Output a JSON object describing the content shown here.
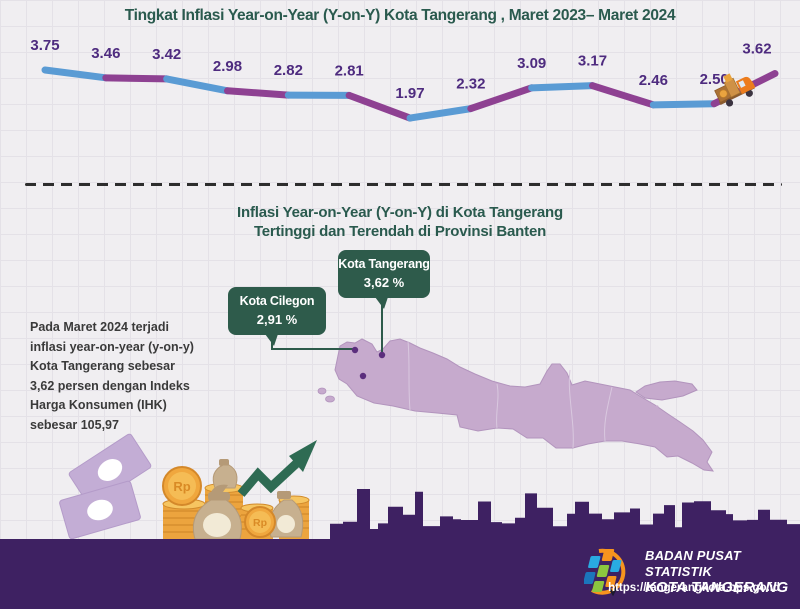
{
  "colors": {
    "background": "#f0eef1",
    "grid_line": "#e4e1e7",
    "line_blue": "#5a9bd4",
    "line_purple": "#8e4192",
    "value_label": "#4e2b7f",
    "title_teal": "#2a5a4e",
    "callout_green": "#2e5b4b",
    "map_fill": "#c6aacd",
    "map_stroke": "#b294bd",
    "map_dot": "#5b2e7d",
    "footer_purple": "#3e2162",
    "coin_gold": "#f0a73e",
    "arrow_green": "#2e6b53"
  },
  "chart_data": {
    "type": "line",
    "title": "Tingkat Inflasi Year-on-Year (Y-on-Y) Kota Tangerang , Maret 2023– Maret 2024",
    "values": [
      3.75,
      3.46,
      3.42,
      2.98,
      2.82,
      2.81,
      1.97,
      2.32,
      3.09,
      3.17,
      2.46,
      2.5,
      3.62
    ],
    "n_points": 13,
    "x_tick_labels_visible": false,
    "ylim": [
      1.6,
      4.0
    ],
    "grid": true,
    "segment_colors_alternating": [
      "#5a9bd4",
      "#8e4192"
    ],
    "value_label_color": "#4e2b7f"
  },
  "section2": {
    "title_line1": "Inflasi Year-on-Year (Y-on-Y) di Kota Tangerang",
    "title_line2": "Tertinggi dan Terendah di Provinsi Banten",
    "callout_high": {
      "name": "Kota Tangerang",
      "value": "3,62 %"
    },
    "callout_low": {
      "name": "Kota Cilegon",
      "value": "2,91 %"
    },
    "narrative": "Pada Maret 2024 terjadi inflasi year-on-year (y-on-y) Kota Tangerang sebesar 3,62 persen dengan Indeks Harga Konsumen (IHK) sebesar 105,97"
  },
  "footer": {
    "org_line1": "BADAN PUSAT STATISTIK",
    "org_line2": "KOTA TANGERANG",
    "url": "https://tangerangkota.bps.go.id"
  }
}
